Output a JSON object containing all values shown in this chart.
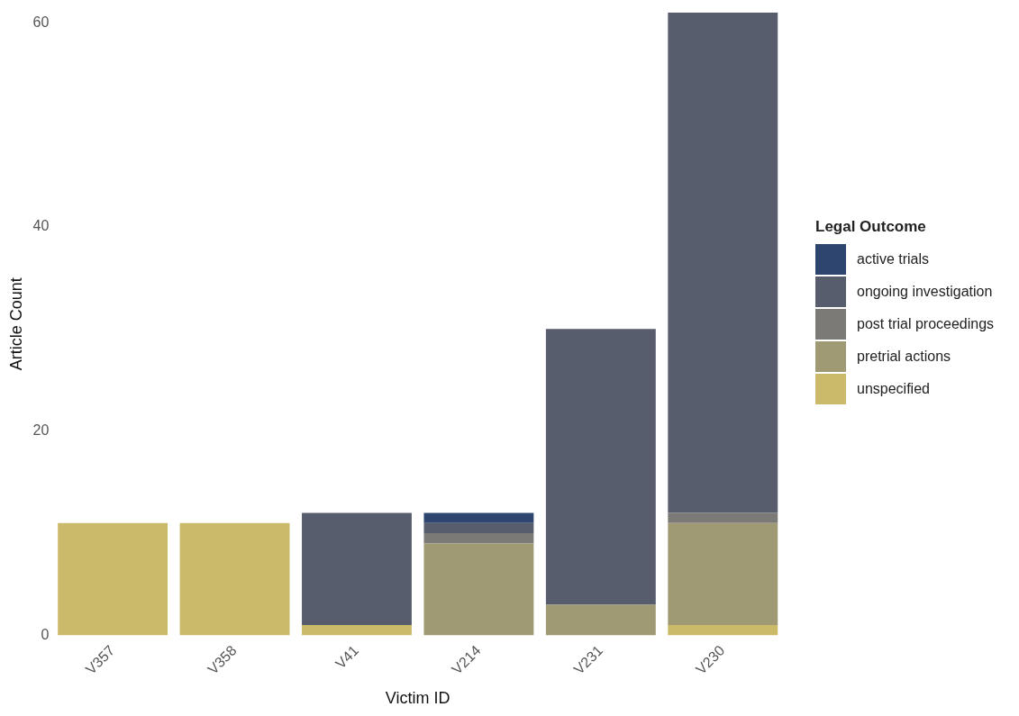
{
  "chart_data": {
    "type": "bar",
    "stacked": true,
    "xlabel": "Victim ID",
    "ylabel": "Article Count",
    "legend_title": "Legal Outcome",
    "legend": "right",
    "grid": false,
    "categories": [
      "V357",
      "V358",
      "V41",
      "V214",
      "V231",
      "V230"
    ],
    "ylim": [
      0,
      61
    ],
    "yticks": [
      0,
      20,
      40,
      60
    ],
    "series": [
      {
        "name": "unspecified",
        "color": "#cbba69",
        "values": [
          11,
          11,
          1,
          0,
          0,
          1
        ]
      },
      {
        "name": "pretrial actions",
        "color": "#a09a74",
        "values": [
          0,
          0,
          0,
          9,
          3,
          10
        ]
      },
      {
        "name": "post trial proceedings",
        "color": "#7b7a76",
        "values": [
          0,
          0,
          0,
          1,
          0,
          1
        ]
      },
      {
        "name": "ongoing investigation",
        "color": "#575d6c",
        "values": [
          0,
          0,
          11,
          1,
          27,
          49
        ]
      },
      {
        "name": "active trials",
        "color": "#2e4570",
        "values": [
          0,
          0,
          0,
          1,
          0,
          0
        ]
      }
    ]
  }
}
